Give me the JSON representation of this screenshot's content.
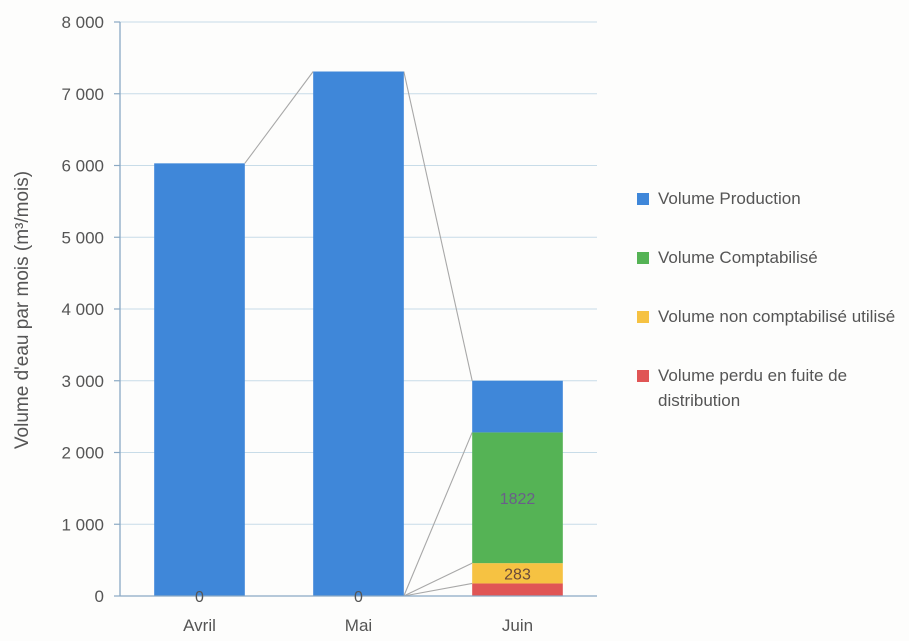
{
  "chart_data": {
    "type": "bar",
    "stacked": true,
    "categories": [
      "Avril",
      "Mai",
      "Juin"
    ],
    "ylabel": "Volume d'eau par mois (m³/mois)",
    "ylim": [
      0,
      8000
    ],
    "yticks": [
      0,
      1000,
      2000,
      3000,
      4000,
      5000,
      6000,
      7000,
      8000
    ],
    "ytick_labels": [
      "0",
      "1 000",
      "2 000",
      "3 000",
      "4 000",
      "5 000",
      "6 000",
      "7 000",
      "8 000"
    ],
    "grid": true,
    "legend_position": "right",
    "series": [
      {
        "name": "Volume perdu en fuite de distribution",
        "color": "#e05555",
        "values": [
          0,
          0,
          175
        ]
      },
      {
        "name": "Volume non comptabilisé utilisé",
        "color": "#f6c242",
        "values": [
          0,
          0,
          283
        ]
      },
      {
        "name": "Volume Comptabilisé",
        "color": "#55b355",
        "values": [
          0,
          0,
          1822
        ]
      },
      {
        "name": "Volume Production",
        "color": "#3f87d9",
        "values": [
          6030,
          7310,
          720
        ]
      }
    ],
    "data_labels": [
      {
        "category": "Avril",
        "text": "0"
      },
      {
        "category": "Mai",
        "text": "0"
      },
      {
        "category": "Juin",
        "series": "Volume non comptabilisé utilisé",
        "text": "283"
      },
      {
        "category": "Juin",
        "series": "Volume Comptabilisé",
        "text": "1822"
      }
    ],
    "series_lines": true
  },
  "legend": {
    "items": [
      {
        "label": "Volume Production",
        "color": "#3f87d9"
      },
      {
        "label": "Volume Comptabilisé",
        "color": "#55b355"
      },
      {
        "label": "Volume non comptabilisé utilisé",
        "color": "#f6c242"
      },
      {
        "label": "Volume perdu en fuite de distribution",
        "color": "#e05555"
      }
    ]
  }
}
